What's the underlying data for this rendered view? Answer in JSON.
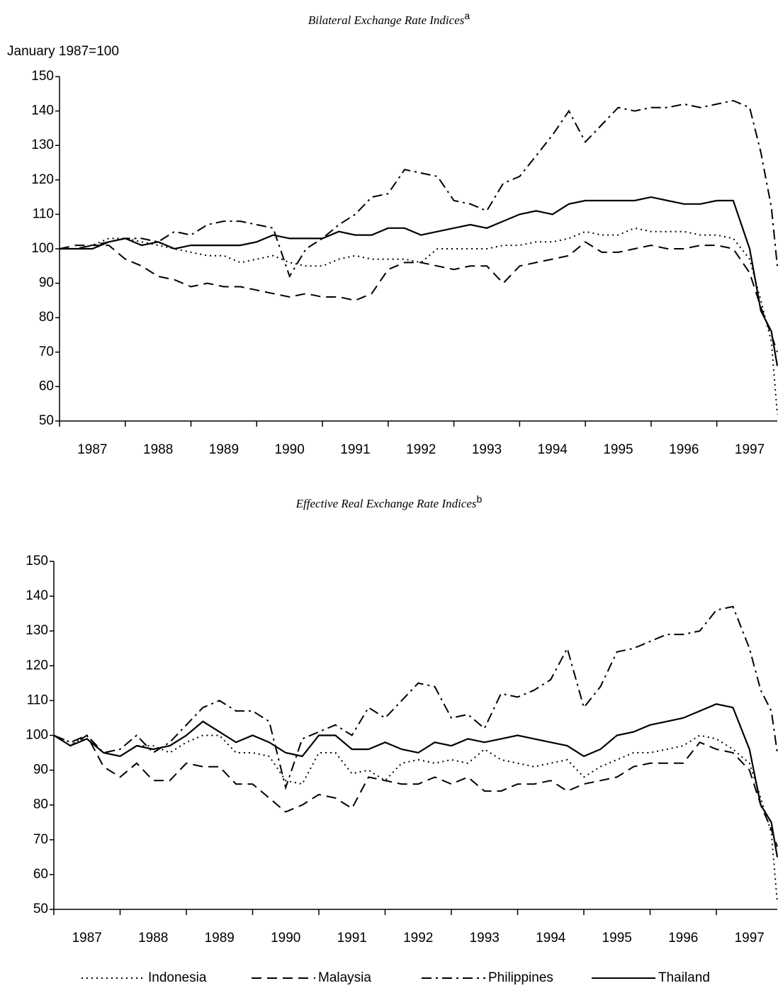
{
  "chart_data": [
    {
      "type": "line",
      "title": "Bilateral Exchange Rate Indices",
      "title_note": "a",
      "y_label": "January 1987=100",
      "xlim": [
        1987,
        1997.92
      ],
      "ylim": [
        50,
        150
      ],
      "yticks": [
        50,
        60,
        70,
        80,
        90,
        100,
        110,
        120,
        130,
        140,
        150
      ],
      "xtick_marks": [
        1987,
        1988,
        1989,
        1990,
        1991,
        1992,
        1993,
        1994,
        1995,
        1996,
        1997
      ],
      "xticks": [
        {
          "value": 1987.5,
          "label": "1987"
        },
        {
          "value": 1988.5,
          "label": "1988"
        },
        {
          "value": 1989.5,
          "label": "1989"
        },
        {
          "value": 1990.5,
          "label": "1990"
        },
        {
          "value": 1991.5,
          "label": "1991"
        },
        {
          "value": 1992.5,
          "label": "1992"
        },
        {
          "value": 1993.5,
          "label": "1993"
        },
        {
          "value": 1994.5,
          "label": "1994"
        },
        {
          "value": 1995.5,
          "label": "1995"
        },
        {
          "value": 1996.5,
          "label": "1996"
        },
        {
          "value": 1997.5,
          "label": "1997"
        }
      ],
      "x": [
        1987,
        1987.25,
        1987.5,
        1987.75,
        1988,
        1988.25,
        1988.5,
        1988.75,
        1989,
        1989.25,
        1989.5,
        1989.75,
        1990,
        1990.25,
        1990.5,
        1990.75,
        1991,
        1991.25,
        1991.5,
        1991.75,
        1992,
        1992.25,
        1992.5,
        1992.75,
        1993,
        1993.25,
        1993.5,
        1993.75,
        1994,
        1994.25,
        1994.5,
        1994.75,
        1995,
        1995.25,
        1995.5,
        1995.75,
        1996,
        1996.25,
        1996.5,
        1996.75,
        1997,
        1997.25,
        1997.5,
        1997.67,
        1997.83,
        1997.92
      ],
      "series": [
        {
          "name": "Indonesia",
          "color": "#000000",
          "dash": "dotted",
          "values": [
            100,
            100,
            101,
            103,
            103,
            102,
            101,
            100,
            99,
            98,
            98,
            96,
            97,
            98,
            96,
            95,
            95,
            97,
            98,
            97,
            97,
            97,
            96,
            100,
            100,
            100,
            100,
            101,
            101,
            102,
            102,
            103,
            105,
            104,
            104,
            106,
            105,
            105,
            105,
            104,
            104,
            103,
            97,
            85,
            73,
            52
          ]
        },
        {
          "name": "Malaysia",
          "color": "#000000",
          "dash": "dashed",
          "values": [
            100,
            101,
            101,
            101,
            97,
            95,
            92,
            91,
            89,
            90,
            89,
            89,
            88,
            87,
            86,
            87,
            86,
            86,
            85,
            87,
            94,
            96,
            96,
            95,
            94,
            95,
            95,
            90,
            95,
            96,
            97,
            98,
            102,
            99,
            99,
            100,
            101,
            100,
            100,
            101,
            101,
            100,
            93,
            83,
            75,
            70
          ]
        },
        {
          "name": "Philippines",
          "color": "#000000",
          "dash": "dash-dot",
          "values": [
            100,
            100,
            101,
            102,
            103,
            103,
            102,
            105,
            104,
            107,
            108,
            108,
            107,
            106,
            92,
            100,
            103,
            107,
            110,
            115,
            116,
            123,
            122,
            121,
            114,
            113,
            111,
            119,
            121,
            127,
            133,
            140,
            131,
            136,
            141,
            140,
            141,
            141,
            142,
            141,
            142,
            143,
            141,
            128,
            112,
            95
          ]
        },
        {
          "name": "Thailand",
          "color": "#000000",
          "dash": "solid",
          "values": [
            100,
            100,
            100,
            102,
            103,
            101,
            102,
            100,
            101,
            101,
            101,
            101,
            102,
            104,
            103,
            103,
            103,
            105,
            104,
            104,
            106,
            106,
            104,
            105,
            106,
            107,
            106,
            108,
            110,
            111,
            110,
            113,
            114,
            114,
            114,
            114,
            115,
            114,
            113,
            113,
            114,
            114,
            100,
            82,
            76,
            66
          ]
        }
      ]
    },
    {
      "type": "line",
      "title": "Effective Real Exchange Rate Indices",
      "title_note": "b",
      "legend": "bottom",
      "xlim": [
        1987,
        1997.92
      ],
      "ylim": [
        50,
        150
      ],
      "yticks": [
        50,
        60,
        70,
        80,
        90,
        100,
        110,
        120,
        130,
        140,
        150
      ],
      "xtick_marks": [
        1987,
        1988,
        1989,
        1990,
        1991,
        1992,
        1993,
        1994,
        1995,
        1996,
        1997
      ],
      "xticks": [
        {
          "value": 1987.5,
          "label": "1987"
        },
        {
          "value": 1988.5,
          "label": "1988"
        },
        {
          "value": 1989.5,
          "label": "1989"
        },
        {
          "value": 1990.5,
          "label": "1990"
        },
        {
          "value": 1991.5,
          "label": "1991"
        },
        {
          "value": 1992.5,
          "label": "1992"
        },
        {
          "value": 1993.5,
          "label": "1993"
        },
        {
          "value": 1994.5,
          "label": "1994"
        },
        {
          "value": 1995.5,
          "label": "1995"
        },
        {
          "value": 1996.5,
          "label": "1996"
        },
        {
          "value": 1997.5,
          "label": "1997"
        }
      ],
      "x": [
        1987,
        1987.25,
        1987.5,
        1987.75,
        1988,
        1988.25,
        1988.5,
        1988.75,
        1989,
        1989.25,
        1989.5,
        1989.75,
        1990,
        1990.25,
        1990.5,
        1990.75,
        1991,
        1991.25,
        1991.5,
        1991.75,
        1992,
        1992.25,
        1992.5,
        1992.75,
        1993,
        1993.25,
        1993.5,
        1993.75,
        1994,
        1994.25,
        1994.5,
        1994.75,
        1995,
        1995.25,
        1995.5,
        1995.75,
        1996,
        1996.25,
        1996.5,
        1996.75,
        1997,
        1997.25,
        1997.5,
        1997.67,
        1997.83,
        1997.92
      ],
      "series": [
        {
          "name": "Indonesia",
          "color": "#000000",
          "dash": "dotted",
          "values": [
            100,
            98,
            99,
            95,
            94,
            97,
            97,
            95,
            98,
            100,
            100,
            95,
            95,
            94,
            87,
            86,
            95,
            95,
            89,
            90,
            87,
            92,
            93,
            92,
            93,
            92,
            96,
            93,
            92,
            91,
            92,
            93,
            88,
            91,
            93,
            95,
            95,
            96,
            97,
            100,
            99,
            96,
            92,
            82,
            72,
            52
          ]
        },
        {
          "name": "Malaysia",
          "color": "#000000",
          "dash": "dashed",
          "values": [
            100,
            97,
            100,
            91,
            88,
            92,
            87,
            87,
            92,
            91,
            91,
            86,
            86,
            82,
            78,
            80,
            83,
            82,
            79,
            88,
            87,
            86,
            86,
            88,
            86,
            88,
            84,
            84,
            86,
            86,
            87,
            84,
            86,
            87,
            88,
            91,
            92,
            92,
            92,
            98,
            96,
            95,
            90,
            80,
            73,
            68
          ]
        },
        {
          "name": "Philippines",
          "color": "#000000",
          "dash": "dash-dot",
          "values": [
            100,
            98,
            100,
            95,
            96,
            100,
            95,
            98,
            103,
            108,
            110,
            107,
            107,
            104,
            85,
            99,
            101,
            103,
            100,
            108,
            105,
            110,
            115,
            114,
            105,
            106,
            102,
            112,
            111,
            113,
            116,
            125,
            108,
            114,
            124,
            125,
            127,
            129,
            129,
            130,
            136,
            137,
            125,
            113,
            107,
            95
          ]
        },
        {
          "name": "Thailand",
          "color": "#000000",
          "dash": "solid",
          "values": [
            100,
            97,
            99,
            95,
            94,
            97,
            96,
            97,
            100,
            104,
            101,
            98,
            100,
            98,
            95,
            94,
            100,
            100,
            96,
            96,
            98,
            96,
            95,
            98,
            97,
            99,
            98,
            99,
            100,
            99,
            98,
            97,
            94,
            96,
            100,
            101,
            103,
            104,
            105,
            107,
            109,
            108,
            96,
            80,
            75,
            65
          ]
        }
      ]
    }
  ]
}
